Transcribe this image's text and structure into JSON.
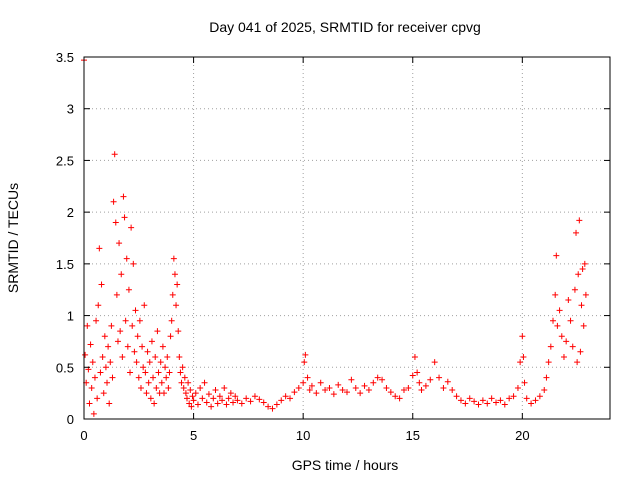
{
  "chart_data": {
    "type": "scatter",
    "title": "Day 041 of 2025, SRMTID for receiver cpvg",
    "xlabel": "GPS time / hours",
    "ylabel": "SRMTID / TECUs",
    "xlim": [
      0,
      24
    ],
    "ylim": [
      0,
      3.5
    ],
    "x_ticks": [
      "0",
      "5",
      "10",
      "15",
      "20"
    ],
    "y_ticks": [
      "0",
      "0.5",
      "1",
      "1.5",
      "2",
      "2.5",
      "3",
      "3.5"
    ],
    "grid": true,
    "marker": "+",
    "color": "#ff0000",
    "series": [
      {
        "name": "SRMTID",
        "points": [
          [
            0.0,
            3.47
          ],
          [
            0.05,
            0.62
          ],
          [
            0.1,
            0.35
          ],
          [
            0.15,
            0.9
          ],
          [
            0.2,
            0.48
          ],
          [
            0.25,
            0.15
          ],
          [
            0.3,
            0.72
          ],
          [
            0.35,
            0.3
          ],
          [
            0.4,
            0.55
          ],
          [
            0.45,
            0.05
          ],
          [
            0.5,
            0.4
          ],
          [
            0.55,
            0.95
          ],
          [
            0.6,
            0.2
          ],
          [
            0.65,
            1.1
          ],
          [
            0.7,
            1.65
          ],
          [
            0.75,
            0.45
          ],
          [
            0.8,
            1.3
          ],
          [
            0.85,
            0.6
          ],
          [
            0.9,
            0.25
          ],
          [
            0.95,
            0.8
          ],
          [
            1.0,
            0.5
          ],
          [
            1.05,
            0.35
          ],
          [
            1.1,
            0.7
          ],
          [
            1.15,
            0.15
          ],
          [
            1.2,
            0.55
          ],
          [
            1.25,
            0.9
          ],
          [
            1.3,
            0.4
          ],
          [
            1.35,
            2.1
          ],
          [
            1.4,
            2.56
          ],
          [
            1.45,
            1.9
          ],
          [
            1.5,
            1.2
          ],
          [
            1.55,
            0.75
          ],
          [
            1.6,
            1.7
          ],
          [
            1.65,
            0.85
          ],
          [
            1.7,
            1.4
          ],
          [
            1.75,
            0.6
          ],
          [
            1.8,
            2.15
          ],
          [
            1.85,
            1.95
          ],
          [
            1.9,
            0.95
          ],
          [
            1.95,
            1.55
          ],
          [
            2.0,
            0.7
          ],
          [
            2.05,
            1.25
          ],
          [
            2.1,
            0.45
          ],
          [
            2.15,
            1.85
          ],
          [
            2.2,
            0.9
          ],
          [
            2.25,
            1.5
          ],
          [
            2.3,
            0.65
          ],
          [
            2.35,
            1.05
          ],
          [
            2.4,
            0.55
          ],
          [
            2.45,
            0.8
          ],
          [
            2.5,
            0.4
          ],
          [
            2.55,
            0.95
          ],
          [
            2.6,
            0.3
          ],
          [
            2.65,
            0.7
          ],
          [
            2.7,
            0.5
          ],
          [
            2.75,
            1.1
          ],
          [
            2.8,
            0.45
          ],
          [
            2.85,
            0.25
          ],
          [
            2.9,
            0.65
          ],
          [
            2.95,
            0.35
          ],
          [
            3.0,
            0.55
          ],
          [
            3.05,
            0.2
          ],
          [
            3.1,
            0.75
          ],
          [
            3.15,
            0.4
          ],
          [
            3.2,
            0.15
          ],
          [
            3.25,
            0.6
          ],
          [
            3.3,
            0.3
          ],
          [
            3.35,
            0.85
          ],
          [
            3.4,
            0.45
          ],
          [
            3.45,
            0.25
          ],
          [
            3.5,
            0.55
          ],
          [
            3.55,
            0.35
          ],
          [
            3.6,
            0.7
          ],
          [
            3.65,
            0.25
          ],
          [
            3.7,
            0.5
          ],
          [
            3.75,
            0.4
          ],
          [
            3.8,
            0.6
          ],
          [
            3.85,
            0.3
          ],
          [
            3.9,
            0.45
          ],
          [
            3.95,
            0.8
          ],
          [
            4.0,
            0.95
          ],
          [
            4.05,
            1.2
          ],
          [
            4.1,
            1.55
          ],
          [
            4.15,
            1.4
          ],
          [
            4.2,
            1.1
          ],
          [
            4.25,
            1.3
          ],
          [
            4.3,
            0.85
          ],
          [
            4.35,
            0.6
          ],
          [
            4.4,
            0.45
          ],
          [
            4.45,
            0.35
          ],
          [
            4.5,
            0.5
          ],
          [
            4.55,
            0.3
          ],
          [
            4.6,
            0.4
          ],
          [
            4.65,
            0.25
          ],
          [
            4.7,
            0.2
          ],
          [
            4.75,
            0.35
          ],
          [
            4.8,
            0.15
          ],
          [
            4.85,
            0.28
          ],
          [
            4.9,
            0.12
          ],
          [
            4.95,
            0.22
          ],
          [
            5.0,
            0.18
          ],
          [
            5.1,
            0.25
          ],
          [
            5.2,
            0.14
          ],
          [
            5.3,
            0.3
          ],
          [
            5.4,
            0.2
          ],
          [
            5.5,
            0.35
          ],
          [
            5.6,
            0.16
          ],
          [
            5.7,
            0.24
          ],
          [
            5.8,
            0.12
          ],
          [
            5.9,
            0.2
          ],
          [
            6.0,
            0.28
          ],
          [
            6.1,
            0.15
          ],
          [
            6.2,
            0.22
          ],
          [
            6.3,
            0.18
          ],
          [
            6.4,
            0.3
          ],
          [
            6.5,
            0.14
          ],
          [
            6.6,
            0.2
          ],
          [
            6.7,
            0.25
          ],
          [
            6.8,
            0.16
          ],
          [
            6.9,
            0.22
          ],
          [
            7.0,
            0.18
          ],
          [
            7.2,
            0.15
          ],
          [
            7.4,
            0.2
          ],
          [
            7.6,
            0.17
          ],
          [
            7.8,
            0.22
          ],
          [
            8.0,
            0.19
          ],
          [
            8.2,
            0.16
          ],
          [
            8.4,
            0.12
          ],
          [
            8.6,
            0.1
          ],
          [
            8.8,
            0.14
          ],
          [
            9.0,
            0.18
          ],
          [
            9.2,
            0.22
          ],
          [
            9.4,
            0.2
          ],
          [
            9.6,
            0.26
          ],
          [
            9.8,
            0.3
          ],
          [
            10.0,
            0.35
          ],
          [
            10.05,
            0.55
          ],
          [
            10.1,
            0.62
          ],
          [
            10.2,
            0.4
          ],
          [
            10.3,
            0.28
          ],
          [
            10.4,
            0.32
          ],
          [
            10.6,
            0.25
          ],
          [
            10.8,
            0.35
          ],
          [
            11.0,
            0.28
          ],
          [
            11.2,
            0.3
          ],
          [
            11.4,
            0.24
          ],
          [
            11.6,
            0.33
          ],
          [
            11.8,
            0.28
          ],
          [
            12.0,
            0.26
          ],
          [
            12.2,
            0.38
          ],
          [
            12.4,
            0.3
          ],
          [
            12.6,
            0.25
          ],
          [
            12.8,
            0.32
          ],
          [
            13.0,
            0.28
          ],
          [
            13.2,
            0.35
          ],
          [
            13.4,
            0.4
          ],
          [
            13.6,
            0.38
          ],
          [
            13.8,
            0.3
          ],
          [
            14.0,
            0.26
          ],
          [
            14.2,
            0.22
          ],
          [
            14.4,
            0.2
          ],
          [
            14.6,
            0.28
          ],
          [
            14.8,
            0.3
          ],
          [
            15.0,
            0.42
          ],
          [
            15.1,
            0.6
          ],
          [
            15.2,
            0.45
          ],
          [
            15.3,
            0.35
          ],
          [
            15.4,
            0.28
          ],
          [
            15.6,
            0.32
          ],
          [
            15.8,
            0.38
          ],
          [
            16.0,
            0.55
          ],
          [
            16.2,
            0.4
          ],
          [
            16.4,
            0.3
          ],
          [
            16.6,
            0.36
          ],
          [
            16.8,
            0.28
          ],
          [
            17.0,
            0.22
          ],
          [
            17.2,
            0.18
          ],
          [
            17.4,
            0.15
          ],
          [
            17.6,
            0.2
          ],
          [
            17.8,
            0.17
          ],
          [
            18.0,
            0.14
          ],
          [
            18.2,
            0.18
          ],
          [
            18.4,
            0.15
          ],
          [
            18.6,
            0.2
          ],
          [
            18.8,
            0.16
          ],
          [
            19.0,
            0.18
          ],
          [
            19.2,
            0.14
          ],
          [
            19.4,
            0.2
          ],
          [
            19.6,
            0.22
          ],
          [
            19.8,
            0.3
          ],
          [
            19.9,
            0.55
          ],
          [
            20.0,
            0.8
          ],
          [
            20.05,
            0.6
          ],
          [
            20.1,
            0.35
          ],
          [
            20.2,
            0.2
          ],
          [
            20.4,
            0.15
          ],
          [
            20.6,
            0.18
          ],
          [
            20.8,
            0.22
          ],
          [
            21.0,
            0.28
          ],
          [
            21.1,
            0.4
          ],
          [
            21.2,
            0.55
          ],
          [
            21.3,
            0.7
          ],
          [
            21.4,
            0.95
          ],
          [
            21.5,
            1.2
          ],
          [
            21.55,
            1.58
          ],
          [
            21.6,
            0.9
          ],
          [
            21.7,
            1.05
          ],
          [
            21.8,
            0.8
          ],
          [
            21.9,
            0.6
          ],
          [
            22.0,
            0.75
          ],
          [
            22.1,
            1.15
          ],
          [
            22.2,
            0.95
          ],
          [
            22.3,
            0.7
          ],
          [
            22.4,
            1.25
          ],
          [
            22.45,
            1.8
          ],
          [
            22.5,
            0.55
          ],
          [
            22.55,
            1.4
          ],
          [
            22.6,
            1.92
          ],
          [
            22.65,
            0.65
          ],
          [
            22.7,
            1.1
          ],
          [
            22.75,
            1.45
          ],
          [
            22.8,
            0.9
          ],
          [
            22.85,
            1.5
          ],
          [
            22.9,
            1.2
          ]
        ]
      }
    ]
  }
}
